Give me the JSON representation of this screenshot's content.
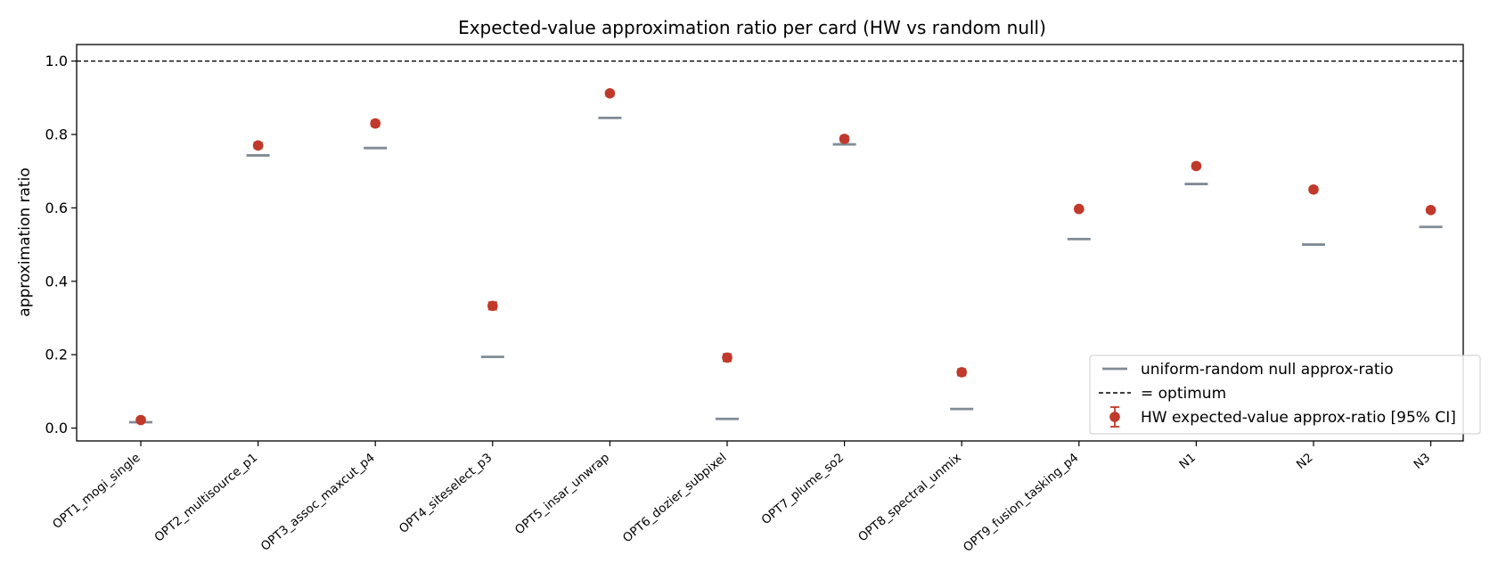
{
  "chart_data": {
    "type": "scatter",
    "title": "Expected-value approximation ratio per card (HW vs random null)",
    "xlabel": "",
    "ylabel": "approximation ratio",
    "categories": [
      "OPT1_mogi_single",
      "OPT2_multisource_p1",
      "OPT3_assoc_maxcut_p4",
      "OPT4_siteselect_p3",
      "OPT5_insar_unwrap",
      "OPT6_dozier_subpixel",
      "OPT7_plume_so2",
      "OPT8_spectral_unmix",
      "OPT9_fusion_tasking_p4",
      "N1",
      "N2",
      "N3"
    ],
    "series": [
      {
        "name": "HW expected-value approx-ratio [95% CI]",
        "kind": "point-with-errorbar",
        "color": "#c0392b",
        "values": [
          0.022,
          0.77,
          0.83,
          0.333,
          0.912,
          0.192,
          0.788,
          0.152,
          0.597,
          0.714,
          0.65,
          0.594
        ],
        "ci_low": [
          0.016,
          0.762,
          0.822,
          0.323,
          0.905,
          0.182,
          0.78,
          0.143,
          0.591,
          0.707,
          0.643,
          0.588
        ],
        "ci_high": [
          0.028,
          0.778,
          0.838,
          0.343,
          0.919,
          0.202,
          0.796,
          0.161,
          0.603,
          0.721,
          0.657,
          0.6
        ]
      },
      {
        "name": "uniform-random null approx-ratio",
        "kind": "horizontal-marker",
        "color": "#808b96",
        "values": [
          0.016,
          0.743,
          0.763,
          0.194,
          0.845,
          0.025,
          0.773,
          0.052,
          0.515,
          0.665,
          0.5,
          0.548
        ]
      }
    ],
    "reference_line": {
      "y": 1.0,
      "label": "= optimum",
      "style": "dashed",
      "color": "#000000"
    },
    "ylim": [
      -0.035,
      1.045
    ],
    "yticks": [
      "0.0",
      "0.2",
      "0.4",
      "0.6",
      "0.8",
      "1.0"
    ],
    "grid": false,
    "legend_position": "lower-right"
  }
}
